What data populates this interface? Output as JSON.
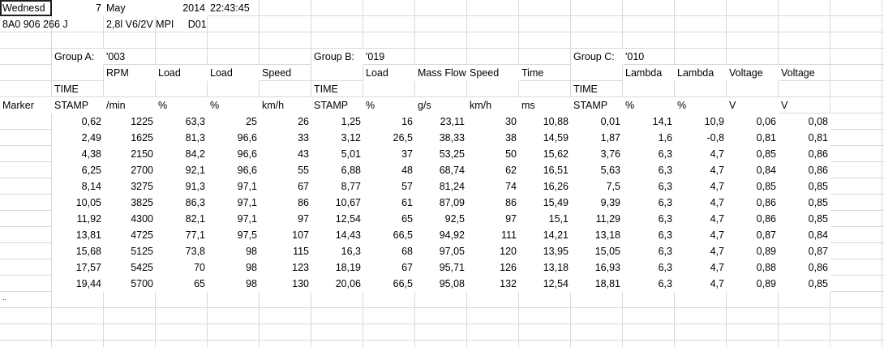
{
  "sheet": {
    "rows": [
      [
        "Wednesd",
        "7",
        "May",
        "2014",
        "22:43:45"
      ],
      [
        "8A0 906 266 J",
        null,
        "2,8l V6/2V MPI     D01"
      ],
      [],
      [
        null,
        "Group A:",
        "'003",
        null,
        null,
        null,
        "Group B:",
        "'019",
        null,
        null,
        null,
        "Group C:",
        "'010"
      ],
      [
        null,
        null,
        "RPM",
        "Load",
        "Load",
        "Speed",
        null,
        "Load",
        "Mass Flow",
        "Speed",
        "Time",
        null,
        "Lambda",
        "Lambda",
        "Voltage",
        "Voltage"
      ],
      [
        null,
        "TIME",
        null,
        null,
        null,
        null,
        "TIME",
        null,
        null,
        null,
        null,
        "TIME"
      ],
      [
        "Marker",
        "STAMP",
        "/min",
        "%",
        "%",
        "km/h",
        "STAMP",
        "%",
        "g/s",
        "km/h",
        "ms",
        "STAMP",
        "%",
        "%",
        "V",
        "V"
      ],
      [
        null,
        "0,62",
        "1225",
        "63,3",
        "25",
        "26",
        "1,25",
        "16",
        "23,11",
        "30",
        "10,88",
        "0,01",
        "14,1",
        "10,9",
        "0,06",
        "0,08"
      ],
      [
        null,
        "2,49",
        "1625",
        "81,3",
        "96,6",
        "33",
        "3,12",
        "26,5",
        "38,33",
        "38",
        "14,59",
        "1,87",
        "1,6",
        "-0,8",
        "0,81",
        "0,81"
      ],
      [
        null,
        "4,38",
        "2150",
        "84,2",
        "96,6",
        "43",
        "5,01",
        "37",
        "53,25",
        "50",
        "15,62",
        "3,76",
        "6,3",
        "4,7",
        "0,85",
        "0,86"
      ],
      [
        null,
        "6,25",
        "2700",
        "92,1",
        "96,6",
        "55",
        "6,88",
        "48",
        "68,74",
        "62",
        "16,51",
        "5,63",
        "6,3",
        "4,7",
        "0,84",
        "0,86"
      ],
      [
        null,
        "8,14",
        "3275",
        "91,3",
        "97,1",
        "67",
        "8,77",
        "57",
        "81,24",
        "74",
        "16,26",
        "7,5",
        "6,3",
        "4,7",
        "0,85",
        "0,85"
      ],
      [
        null,
        "10,05",
        "3825",
        "86,3",
        "97,1",
        "86",
        "10,67",
        "61",
        "87,09",
        "86",
        "15,49",
        "9,39",
        "6,3",
        "4,7",
        "0,86",
        "0,85"
      ],
      [
        null,
        "11,92",
        "4300",
        "82,1",
        "97,1",
        "97",
        "12,54",
        "65",
        "92,5",
        "97",
        "15,1",
        "11,29",
        "6,3",
        "4,7",
        "0,86",
        "0,85"
      ],
      [
        null,
        "13,81",
        "4725",
        "77,1",
        "97,5",
        "107",
        "14,43",
        "66,5",
        "94,92",
        "111",
        "14,21",
        "13,18",
        "6,3",
        "4,7",
        "0,87",
        "0,84"
      ],
      [
        null,
        "15,68",
        "5125",
        "73,8",
        "98",
        "115",
        "16,3",
        "68",
        "97,05",
        "120",
        "13,95",
        "15,05",
        "6,3",
        "4,7",
        "0,89",
        "0,87"
      ],
      [
        null,
        "17,57",
        "5425",
        "70",
        "98",
        "123",
        "18,19",
        "67",
        "95,71",
        "126",
        "13,18",
        "16,93",
        "6,3",
        "4,7",
        "0,88",
        "0,86"
      ],
      [
        null,
        "19,44",
        "5700",
        "65",
        "98",
        "130",
        "20,06",
        "66,5",
        "95,08",
        "132",
        "12,54",
        "18,81",
        "6,3",
        "4,7",
        "0,89",
        "0,85"
      ],
      [
        ".."
      ]
    ]
  }
}
